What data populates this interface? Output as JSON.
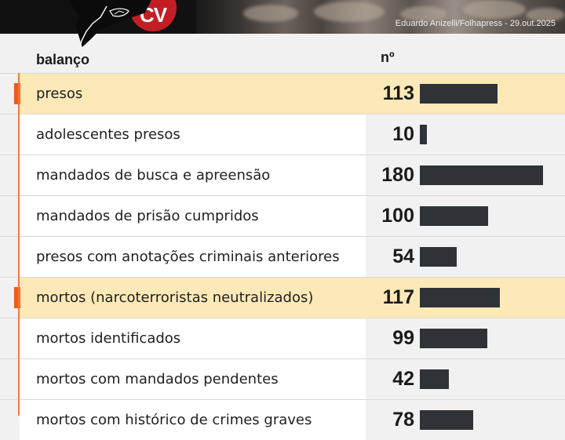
{
  "header": {
    "logo_text": "CV",
    "credit": "Eduardo Anizelli/Folhapress - 29.out.2025"
  },
  "table": {
    "columns": {
      "label": "balanço",
      "value": "nº"
    },
    "bar_max": 180,
    "rows": [
      {
        "label": "presos",
        "value": "113",
        "amount": 113,
        "highlight": true
      },
      {
        "label": "adolescentes presos",
        "value": "10",
        "amount": 10,
        "highlight": false
      },
      {
        "label": "mandados de busca e apreensão",
        "value": "180",
        "amount": 180,
        "highlight": false
      },
      {
        "label": "mandados de prisão cumpridos",
        "value": "100",
        "amount": 100,
        "highlight": false
      },
      {
        "label": "presos com anotações criminais anteriores",
        "value": "54",
        "amount": 54,
        "highlight": false
      },
      {
        "label": "mortos (narcoterroristas neutralizados)",
        "value": "117",
        "amount": 117,
        "highlight": true
      },
      {
        "label": "mortos identificados",
        "value": "99",
        "amount": 99,
        "highlight": false
      },
      {
        "label": "mortos com mandados pendentes",
        "value": "42",
        "amount": 42,
        "highlight": false
      },
      {
        "label": "mortos com histórico de crimes graves",
        "value": "78",
        "amount": 78,
        "highlight": false
      }
    ]
  },
  "colors": {
    "highlight_bg": "#fde9b7",
    "marker": "#f05a1a",
    "bar": "#2f3338",
    "logo": "#c41e25"
  }
}
